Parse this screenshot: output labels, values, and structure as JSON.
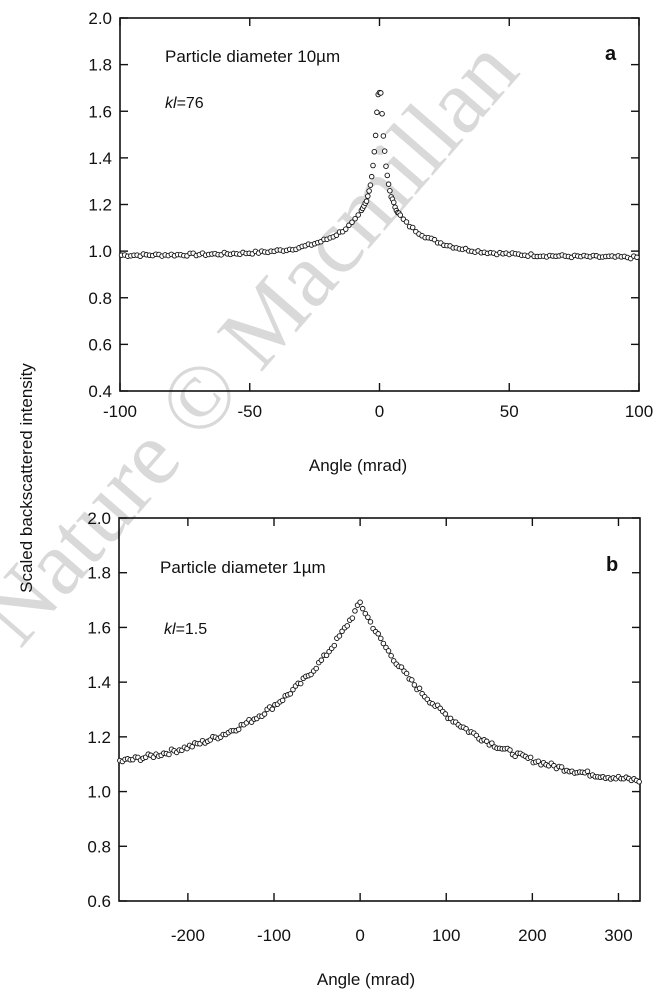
{
  "figure": {
    "ylabel": "Scaled backscattered intensity",
    "watermark": "Nature © Macmillan"
  },
  "colors": {
    "ink": "#111111",
    "marker_fill": "#ffffff",
    "watermark": "#d9d9d9"
  },
  "chart_data": [
    {
      "type": "scatter",
      "panel": "a",
      "annotation": "Particle diameter 10µm",
      "kl_symbol": "kl",
      "kl_value": "=76",
      "xlabel": "Angle (mrad)",
      "xlim": [
        -100,
        100
      ],
      "ylim": [
        0.4,
        2.0
      ],
      "xticks": [
        -100,
        -50,
        0,
        50,
        100
      ],
      "yticks": [
        "0.4",
        "0.6",
        "0.8",
        "1.0",
        "1.2",
        "1.4",
        "1.6",
        "1.8",
        "2.0"
      ],
      "curve": {
        "peak": 1.68,
        "center": 0,
        "baseline_left": 0.98,
        "baseline_right": 0.97,
        "amp_narrow": 0.45,
        "width_narrow": 1.8,
        "amp_wide": 0.26,
        "width_wide": 16,
        "x_step": 1.2,
        "near_center_step": 0.5
      },
      "grid": false
    },
    {
      "type": "scatter",
      "panel": "b",
      "annotation": "Particle diameter 1µm",
      "kl_symbol": "kl",
      "kl_value": "=1.5",
      "xlabel": "Angle (mrad)",
      "xlim": [
        -280,
        325
      ],
      "ylim": [
        0.6,
        2.0
      ],
      "xticks": [
        -200,
        -100,
        0,
        100,
        200,
        300
      ],
      "yticks": [
        "0.6",
        "0.8",
        "1.0",
        "1.2",
        "1.4",
        "1.6",
        "1.8",
        "2.0"
      ],
      "curve": {
        "peak": 1.69,
        "center": 0,
        "baseline": 1.0,
        "left_end": 1.11,
        "right_end": 1.04,
        "x_step": 3
      },
      "grid": false
    }
  ]
}
